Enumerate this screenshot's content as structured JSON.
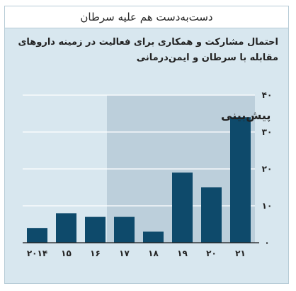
{
  "header": {
    "title": "دست‌به‌دست هم علیه سرطان"
  },
  "chart_data": {
    "type": "bar",
    "title": "احتمال مشارکت و همکاری برای فعالیت در زمینه داروهای مقابله با سرطان و ایمن‌درمانی",
    "categories": [
      "۲۰۱۴",
      "۱۵",
      "۱۶",
      "۱۷",
      "۱۸",
      "۱۹",
      "۲۰",
      "۲۱"
    ],
    "values": [
      4,
      8,
      7,
      7,
      3,
      19,
      15,
      34
    ],
    "ylim": [
      0,
      40
    ],
    "yticks": [
      0,
      10,
      20,
      30,
      40
    ],
    "ytick_labels": [
      "۰",
      "۱۰",
      "۲۰",
      "۳۰",
      "۴۰"
    ],
    "grid": true,
    "forecast_label": "پیش‌بینی",
    "forecast_start_category": "۱۷",
    "colors": {
      "bar": "#0e4a6b",
      "forecast_shade": "#bccfdb",
      "panel": "#d8e7ef",
      "grid": "#ffffff"
    }
  }
}
